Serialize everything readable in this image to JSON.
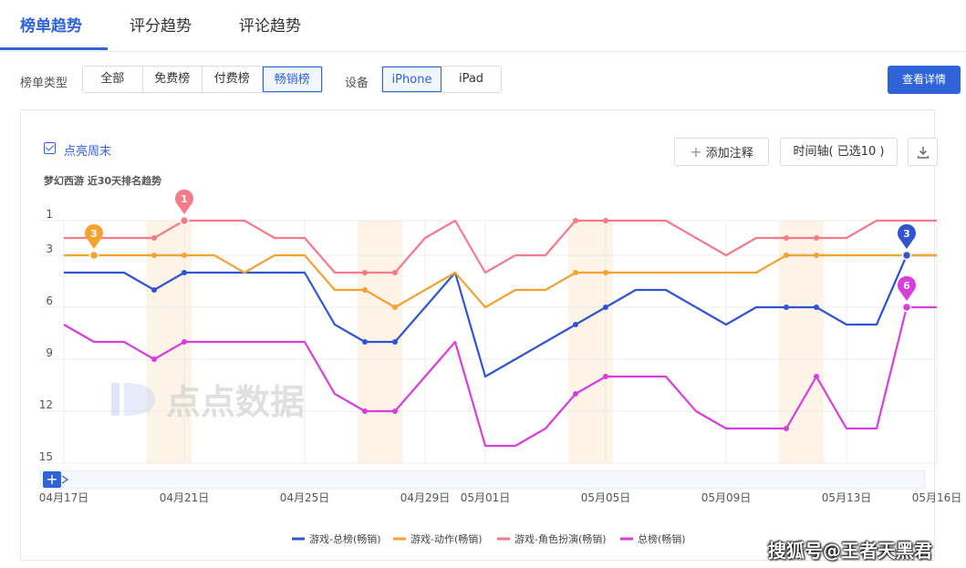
{
  "tabs": [
    {
      "label": "榜单趋势",
      "active": true
    },
    {
      "label": "评分趋势",
      "active": false
    },
    {
      "label": "评论趋势",
      "active": false
    }
  ],
  "filters": {
    "chart_type_label": "榜单类型",
    "chart_types": [
      {
        "label": "全部",
        "active": false
      },
      {
        "label": "免费榜",
        "active": false
      },
      {
        "label": "付费榜",
        "active": false
      },
      {
        "label": "畅销榜",
        "active": true
      }
    ],
    "device_label": "设备",
    "devices": [
      {
        "label": "iPhone",
        "active": true
      },
      {
        "label": "iPad",
        "active": false
      }
    ],
    "detail_button": "查看详情"
  },
  "toolbar": {
    "highlight_weekend": "点亮周末",
    "highlight_checked": true,
    "add_note": "添加注释",
    "timeline": "时间轴( 已选10 )",
    "download_icon": "download-icon"
  },
  "brand_watermark": "点点数据",
  "footer_watermark": "搜狐号@王者天黑君",
  "colors": {
    "accent": "#2f63d8",
    "series": [
      "#2f55d4",
      "#f5a233",
      "#f77a8a",
      "#d83ddf"
    ],
    "weekend": "#fdf3e6"
  },
  "chart_data": {
    "type": "line",
    "title": "梦幻西游 近30天排名趋势",
    "y_inverted": true,
    "ylim": [
      1,
      15
    ],
    "y_ticks": [
      1,
      3,
      6,
      9,
      12,
      15
    ],
    "x": [
      "04月17日",
      "04月18日",
      "04月19日",
      "04月20日",
      "04月21日",
      "04月22日",
      "04月23日",
      "04月24日",
      "04月25日",
      "04月26日",
      "04月27日",
      "04月28日",
      "04月29日",
      "04月30日",
      "05月01日",
      "05月02日",
      "05月03日",
      "05月04日",
      "05月05日",
      "05月06日",
      "05月07日",
      "05月08日",
      "05月09日",
      "05月10日",
      "05月11日",
      "05月12日",
      "05月13日",
      "05月14日",
      "05月15日",
      "05月16日"
    ],
    "x_tick_labels": [
      "04月17日",
      "04月21日",
      "04月25日",
      "04月29日",
      "05月01日",
      "05月05日",
      "05月09日",
      "05月13日",
      "05月16日"
    ],
    "weekends": [
      [
        "04月20日",
        "04月21日"
      ],
      [
        "04月27日",
        "04月28日"
      ],
      [
        "05月04日",
        "05月05日"
      ],
      [
        "05月11日",
        "05月12日"
      ]
    ],
    "grid": true,
    "legend_position": "bottom",
    "series": [
      {
        "name": "游戏-总榜(畅销)",
        "values": [
          4,
          4,
          4,
          5,
          4,
          4,
          4,
          4,
          4,
          7,
          8,
          8,
          6,
          4,
          10,
          9,
          8,
          7,
          6,
          5,
          5,
          6,
          7,
          6,
          6,
          6,
          7,
          7,
          3,
          3
        ]
      },
      {
        "name": "游戏-动作(畅销)",
        "values": [
          3,
          3,
          3,
          3,
          3,
          3,
          4,
          3,
          3,
          5,
          5,
          6,
          5,
          4,
          6,
          5,
          5,
          4,
          4,
          4,
          4,
          4,
          4,
          4,
          3,
          3,
          3,
          3,
          3,
          3
        ]
      },
      {
        "name": "游戏-角色扮演(畅销)",
        "values": [
          2,
          2,
          2,
          2,
          1,
          1,
          1,
          2,
          2,
          4,
          4,
          4,
          2,
          1,
          4,
          3,
          3,
          1,
          1,
          1,
          1,
          2,
          3,
          2,
          2,
          2,
          2,
          1,
          1,
          1
        ]
      },
      {
        "name": "总榜(畅销)",
        "values": [
          7,
          8,
          8,
          9,
          8,
          8,
          8,
          8,
          8,
          11,
          12,
          12,
          10,
          8,
          14,
          14,
          13,
          11,
          10,
          10,
          10,
          12,
          13,
          13,
          13,
          10,
          13,
          13,
          6,
          6
        ]
      }
    ],
    "pins": [
      {
        "series": 1,
        "x": "04月18日",
        "label": "3"
      },
      {
        "series": 2,
        "x": "04月21日",
        "label": "1"
      },
      {
        "series": 0,
        "x": "05月15日",
        "label": "3"
      },
      {
        "series": 3,
        "x": "05月15日",
        "label": "6"
      }
    ]
  }
}
